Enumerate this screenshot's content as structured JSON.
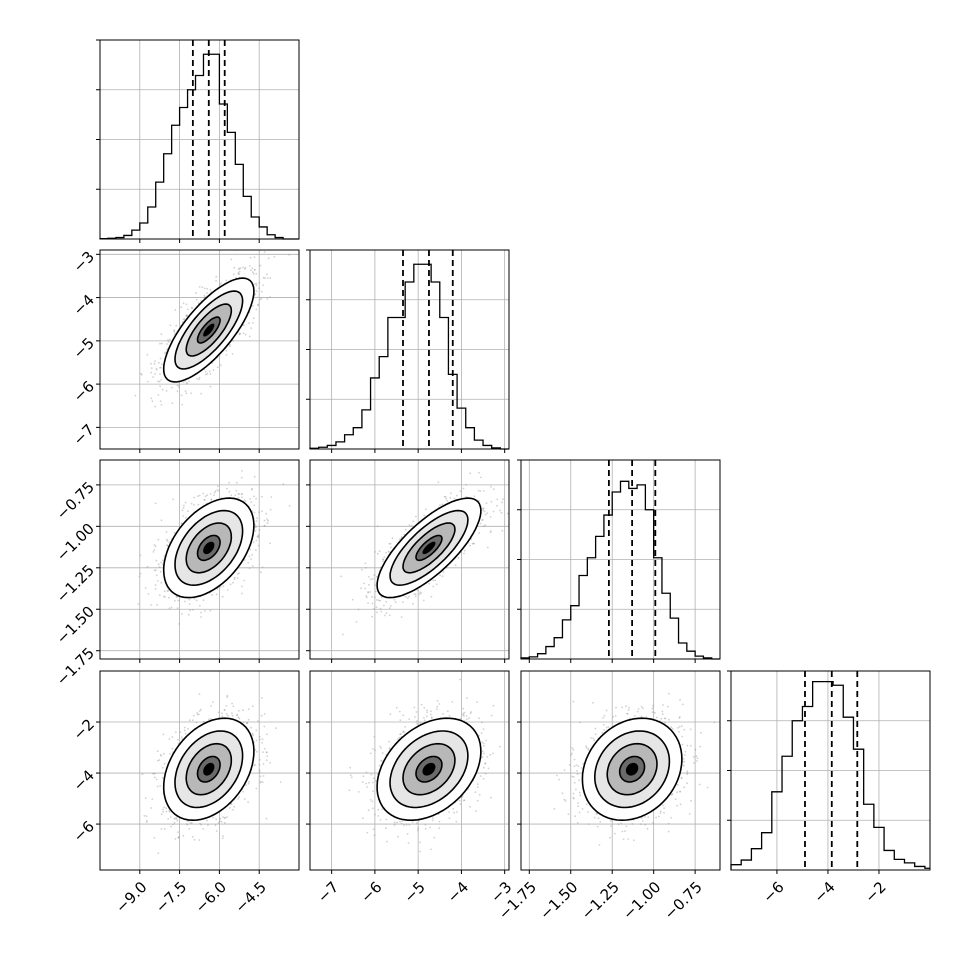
{
  "chart_data": {
    "type": "corner",
    "parameters": [
      {
        "index": 0,
        "range": [
          -10.5,
          -3.0
        ],
        "ticks": [
          -9.0,
          -7.5,
          -6.0,
          -4.5
        ],
        "tick_labels": [
          "−9.0",
          "−7.5",
          "−6.0",
          "−4.5"
        ],
        "quantiles": [
          -7.0,
          -6.4,
          -5.8
        ],
        "median": -6.4,
        "sigma": 0.85
      },
      {
        "index": 1,
        "range": [
          -7.5,
          -2.9
        ],
        "ticks": [
          -7,
          -6,
          -5,
          -4,
          -3
        ],
        "tick_labels": [
          "−7",
          "−6",
          "−5",
          "−4",
          "−3"
        ],
        "quantiles": [
          -5.35,
          -4.75,
          -4.2
        ],
        "median": -4.75,
        "sigma": 0.6
      },
      {
        "index": 2,
        "range": [
          -1.8,
          -0.6
        ],
        "ticks": [
          -1.75,
          -1.5,
          -1.25,
          -1.0,
          -0.75
        ],
        "tick_labels": [
          "−1.75",
          "−1.50",
          "−1.25",
          "−1.00",
          "−0.75"
        ],
        "quantiles": [
          -1.27,
          -1.13,
          -0.99
        ],
        "median": -1.13,
        "sigma": 0.15
      },
      {
        "index": 3,
        "range": [
          -7.8,
          0.0
        ],
        "ticks": [
          -6,
          -4,
          -2
        ],
        "tick_labels": [
          "−6",
          "−4",
          "−2"
        ],
        "quantiles": [
          -4.9,
          -3.85,
          -2.85
        ],
        "median": -3.85,
        "sigma": 1.0
      }
    ],
    "histograms": [
      {
        "param": 0,
        "edges": [
          -10.5,
          -10.2,
          -9.9,
          -9.6,
          -9.3,
          -9.0,
          -8.7,
          -8.4,
          -8.1,
          -7.8,
          -7.5,
          -7.2,
          -6.9,
          -6.6,
          -6.3,
          -6.0,
          -5.7,
          -5.4,
          -5.1,
          -4.8,
          -4.5,
          -4.2,
          -3.9,
          -3.6,
          -3.3,
          -3.0
        ],
        "counts": [
          1,
          2,
          4,
          10,
          25,
          45,
          90,
          160,
          240,
          320,
          370,
          420,
          460,
          520,
          520,
          380,
          300,
          210,
          120,
          62,
          34,
          12,
          4,
          0,
          0
        ]
      },
      {
        "param": 1,
        "edges": [
          -7.5,
          -7.3,
          -7.1,
          -6.9,
          -6.7,
          -6.5,
          -6.3,
          -6.1,
          -5.9,
          -5.7,
          -5.5,
          -5.3,
          -5.1,
          -4.9,
          -4.7,
          -4.5,
          -4.3,
          -4.1,
          -3.9,
          -3.7,
          -3.5,
          -3.3,
          -3.1,
          -2.9
        ],
        "counts": [
          2,
          5,
          10,
          20,
          40,
          60,
          110,
          200,
          260,
          370,
          370,
          470,
          520,
          520,
          470,
          370,
          210,
          115,
          60,
          25,
          10,
          3,
          0
        ]
      },
      {
        "param": 2,
        "edges": [
          -1.8,
          -1.75,
          -1.7,
          -1.65,
          -1.6,
          -1.55,
          -1.5,
          -1.45,
          -1.4,
          -1.35,
          -1.3,
          -1.25,
          -1.2,
          -1.15,
          -1.1,
          -1.05,
          -1.0,
          -0.95,
          -0.9,
          -0.85,
          -0.8,
          -0.75,
          -0.7,
          -0.65,
          -0.6
        ],
        "counts": [
          3,
          6,
          15,
          35,
          60,
          110,
          150,
          235,
          285,
          345,
          405,
          470,
          500,
          480,
          490,
          420,
          285,
          185,
          115,
          45,
          22,
          8,
          3,
          0
        ]
      },
      {
        "param": 3,
        "edges": [
          -7.8,
          -7.4,
          -7.0,
          -6.6,
          -6.2,
          -5.8,
          -5.4,
          -5.0,
          -4.6,
          -4.2,
          -3.8,
          -3.4,
          -3.0,
          -2.6,
          -2.2,
          -1.8,
          -1.4,
          -1.0,
          -0.6,
          -0.2,
          0.0
        ],
        "counts": [
          15,
          28,
          60,
          105,
          220,
          320,
          420,
          460,
          530,
          530,
          520,
          430,
          340,
          185,
          120,
          55,
          30,
          20,
          10,
          5
        ]
      }
    ],
    "histogram_ylim": [
      0,
      560
    ],
    "scatter_points_per_panel": 1400,
    "correlations": [
      {
        "x": 0,
        "y": 1,
        "rho": 0.75
      },
      {
        "x": 0,
        "y": 2,
        "rho": 0.45
      },
      {
        "x": 1,
        "y": 2,
        "rho": 0.75
      },
      {
        "x": 0,
        "y": 3,
        "rho": 0.35
      },
      {
        "x": 1,
        "y": 3,
        "rho": 0.35
      },
      {
        "x": 2,
        "y": 3,
        "rho": 0.2
      }
    ],
    "contour_levels_sigma": [
      0.5,
      1.0,
      1.5,
      2.0
    ],
    "grid": true,
    "colors": {
      "points": "#9a9a9a",
      "contour": "#000000",
      "density_max": "#000000",
      "grid": "#b0b0b0"
    }
  }
}
